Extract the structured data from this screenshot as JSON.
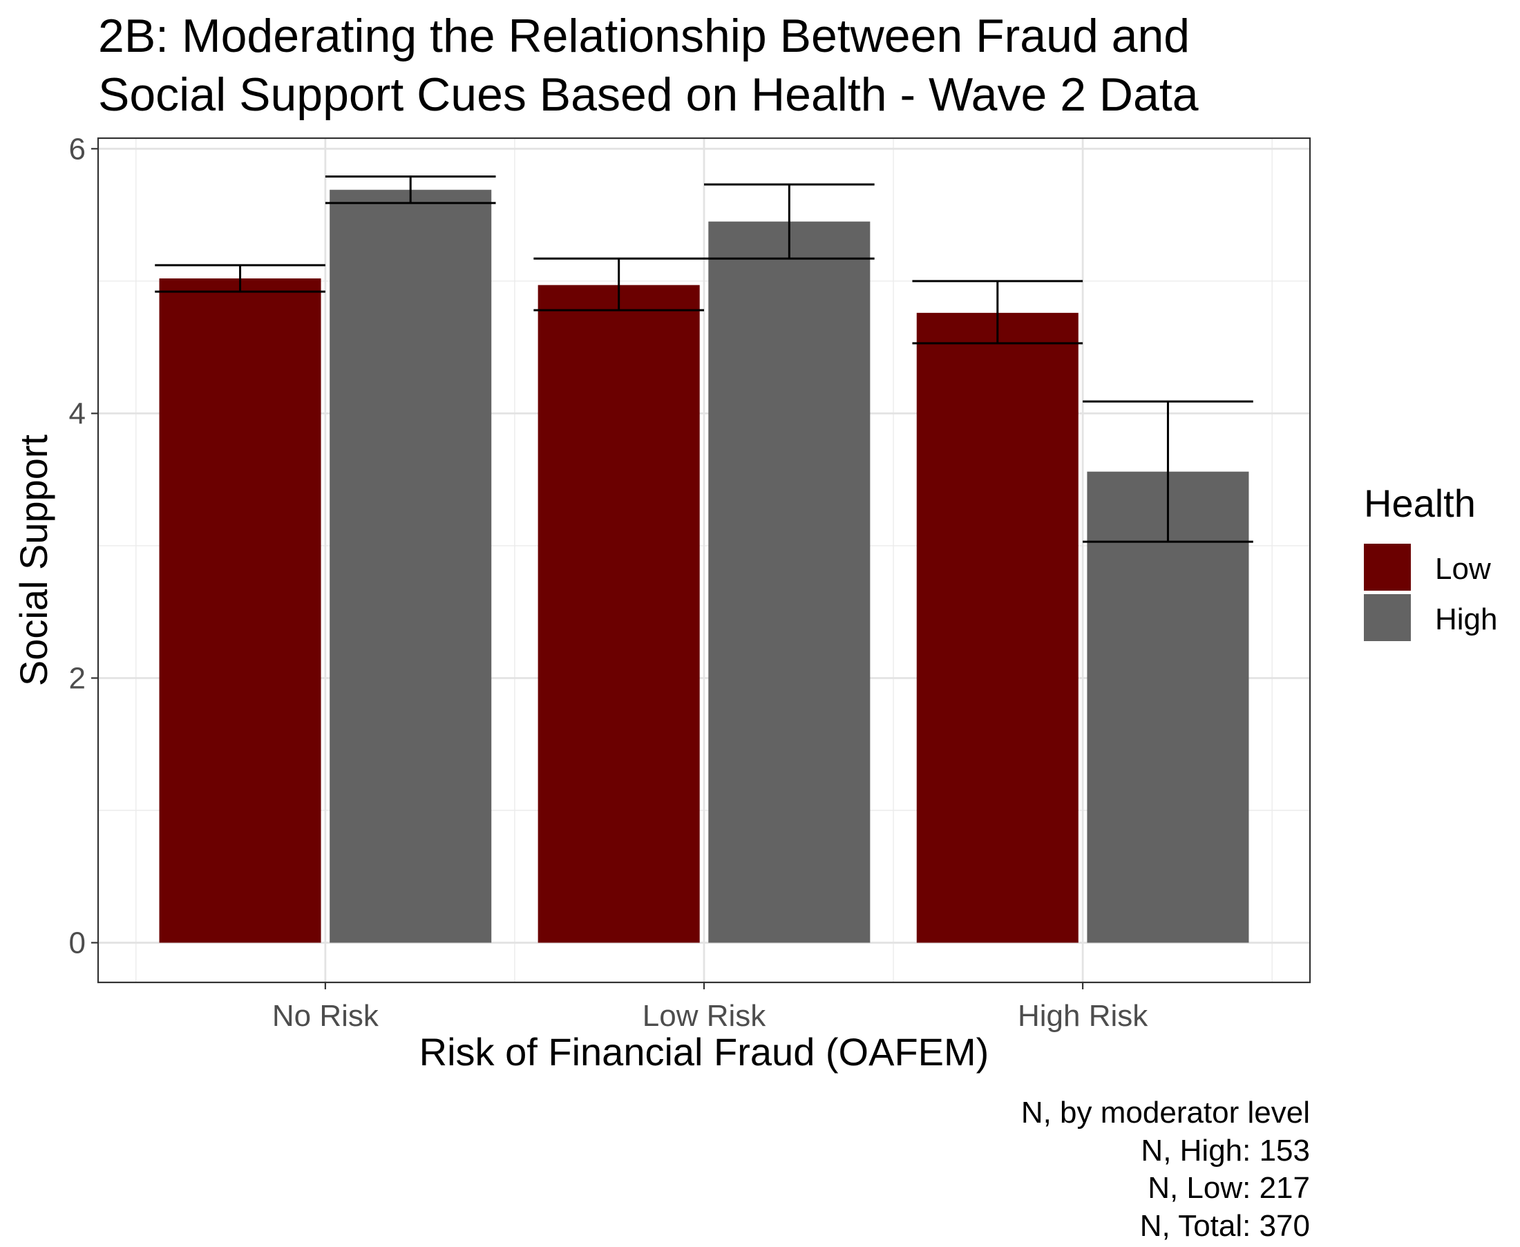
{
  "chart_data": {
    "type": "bar",
    "title_lines": [
      "2B: Moderating the Relationship Between Fraud and",
      "Social Support Cues Based on Health - Wave 2 Data"
    ],
    "xlabel": "Risk of Financial Fraud (OAFEM)",
    "ylabel": "Social Support",
    "categories": [
      "No Risk",
      "Low Risk",
      "High Risk"
    ],
    "ylim": [
      -0.3,
      6.08
    ],
    "yticks": [
      0,
      2,
      4,
      6
    ],
    "grid": true,
    "legend": {
      "title": "Health",
      "placement": "right"
    },
    "series": [
      {
        "name": "Low",
        "color": "#6b0000",
        "values": [
          5.02,
          4.97,
          4.76
        ],
        "error_low": [
          4.92,
          4.78,
          4.53
        ],
        "error_high": [
          5.12,
          5.17,
          5.0
        ]
      },
      {
        "name": "High",
        "color": "#636363",
        "values": [
          5.69,
          5.45,
          3.56
        ],
        "error_low": [
          5.59,
          5.17,
          3.03
        ],
        "error_high": [
          5.79,
          5.73,
          4.09
        ]
      }
    ],
    "caption_lines": [
      "N, by moderator level",
      "N, High: 153",
      "N,  Low: 217",
      "N, Total: 370"
    ]
  }
}
